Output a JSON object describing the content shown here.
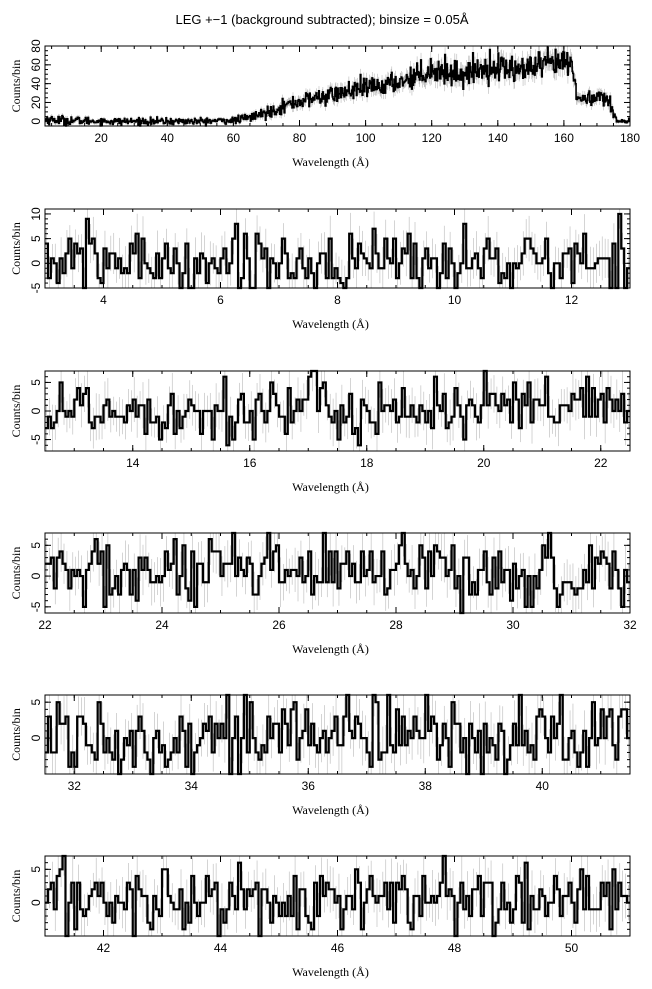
{
  "figure": {
    "title": "LEG +−1 (background subtracted); binsize = 0.05Å",
    "colors": {
      "spectrum": "#000000",
      "errorbar": "#b8b8b8",
      "axes": "#000000",
      "background": "#ffffff"
    }
  },
  "chart_data": [
    {
      "type": "line",
      "style": "histogram-step-with-errorbars",
      "xlabel": "Wavelength (Å)",
      "ylabel": "Counts/bin",
      "xlim": [
        3,
        180
      ],
      "ylim": [
        -5,
        80
      ],
      "xticks": [
        20,
        40,
        60,
        80,
        100,
        120,
        140,
        160,
        180
      ],
      "yticks": [
        0,
        20,
        40,
        60,
        80
      ],
      "grid": false,
      "series": [
        {
          "envelope_x": [
            3,
            10,
            20,
            30,
            40,
            50,
            60,
            65,
            70,
            75,
            80,
            85,
            90,
            95,
            100,
            105,
            110,
            115,
            120,
            125,
            130,
            135,
            140,
            145,
            150,
            155,
            160,
            162,
            163,
            164,
            165,
            168,
            170,
            172,
            174,
            175,
            176,
            177,
            180
          ],
          "envelope_y": [
            2,
            1,
            0,
            0,
            0,
            0,
            1,
            4,
            9,
            16,
            21,
            25,
            28,
            32,
            35,
            38,
            42,
            48,
            55,
            52,
            50,
            56,
            58,
            55,
            56,
            60,
            62,
            62,
            45,
            30,
            22,
            25,
            27,
            26,
            18,
            8,
            3,
            0,
            0
          ],
          "noise_amplitude_envelope": [
            4,
            4,
            3,
            3,
            3,
            3,
            3,
            4,
            5,
            6,
            7,
            7,
            8,
            8,
            9,
            9,
            9,
            10,
            12,
            11,
            11,
            11,
            12,
            12,
            12,
            12,
            13,
            13,
            10,
            8,
            7,
            7,
            7,
            7,
            6,
            4,
            3,
            2,
            2
          ]
        }
      ]
    },
    {
      "type": "line",
      "style": "histogram-step-with-errorbars",
      "xlabel": "Wavelength (Å)",
      "ylabel": "Counts/bin",
      "xlim": [
        3,
        13
      ],
      "ylim": [
        -5,
        11
      ],
      "xticks": [
        4,
        6,
        8,
        10,
        12
      ],
      "yticks": [
        -5,
        0,
        5,
        10
      ],
      "grid": false,
      "series": [
        {
          "mean_counts": 0.3,
          "noise_amplitude": 3.4,
          "min": -5,
          "max": 11
        }
      ]
    },
    {
      "type": "line",
      "style": "histogram-step-with-errorbars",
      "xlabel": "Wavelength (Å)",
      "ylabel": "Counts/bin",
      "xlim": [
        12.5,
        22.5
      ],
      "ylim": [
        -7,
        7
      ],
      "xticks": [
        14,
        16,
        18,
        20,
        22
      ],
      "yticks": [
        -5,
        0,
        5
      ],
      "grid": false,
      "series": [
        {
          "mean_counts": 0.3,
          "noise_amplitude": 3.0,
          "min": -7,
          "max": 7
        }
      ]
    },
    {
      "type": "line",
      "style": "histogram-step-with-errorbars",
      "xlabel": "Wavelength (Å)",
      "ylabel": "Counts/bin",
      "xlim": [
        22,
        32
      ],
      "ylim": [
        -6,
        7
      ],
      "xticks": [
        22,
        24,
        26,
        28,
        30,
        32
      ],
      "yticks": [
        -5,
        0,
        5
      ],
      "grid": false,
      "series": [
        {
          "mean_counts": 0.4,
          "noise_amplitude": 3.0,
          "min": -6,
          "max": 7
        }
      ]
    },
    {
      "type": "line",
      "style": "histogram-step-with-errorbars",
      "xlabel": "Wavelength (Å)",
      "ylabel": "Counts/bin",
      "xlim": [
        31.5,
        41.5
      ],
      "ylim": [
        -5,
        6
      ],
      "xticks": [
        32,
        34,
        36,
        38,
        40
      ],
      "yticks": [
        0,
        5
      ],
      "grid": false,
      "series": [
        {
          "mean_counts": 0.4,
          "noise_amplitude": 2.8,
          "min": -5,
          "max": 6
        }
      ]
    },
    {
      "type": "line",
      "style": "histogram-step-with-errorbars",
      "xlabel": "Wavelength (Å)",
      "ylabel": "Counts/bin",
      "xlim": [
        41,
        51
      ],
      "ylim": [
        -5,
        7
      ],
      "xticks": [
        42,
        44,
        46,
        48,
        50
      ],
      "yticks": [
        0,
        5
      ],
      "grid": false,
      "series": [
        {
          "mean_counts": 0.4,
          "noise_amplitude": 2.8,
          "min": -5,
          "max": 7
        }
      ]
    }
  ]
}
